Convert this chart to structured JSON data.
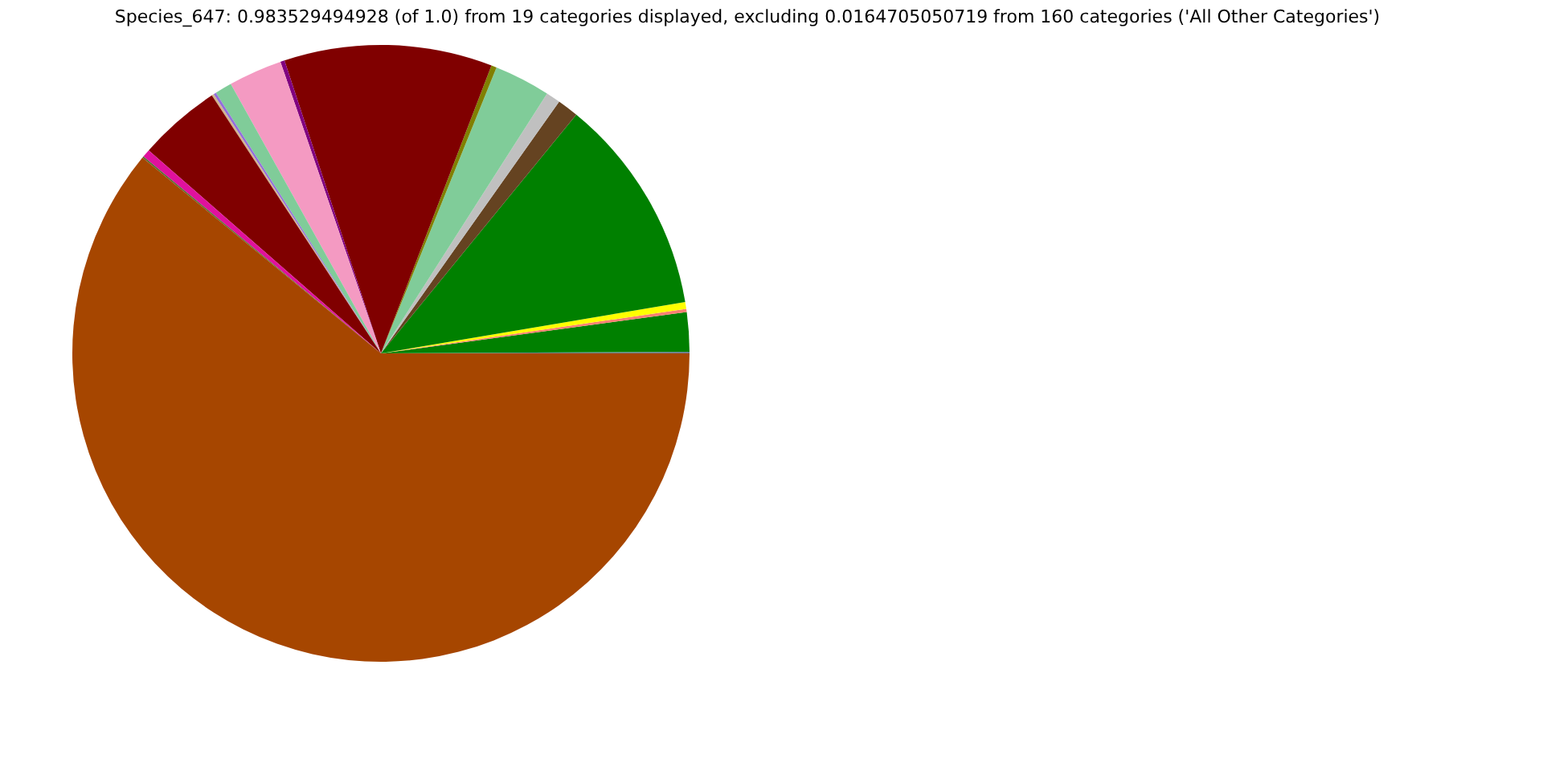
{
  "chart_data": {
    "type": "pie",
    "title": "Species_647: 0.983529494928 (of 1.0) from 19 categories displayed, excluding 0.0164705050719 from 160 categories ('All Other Categories')",
    "categories": [
      null,
      null,
      null,
      null,
      null,
      null,
      null,
      null,
      null,
      null,
      null,
      null,
      null,
      null,
      null,
      null,
      null,
      null,
      null
    ],
    "values": [
      0.08,
      2.06,
      0.17,
      0.36,
      11.42,
      1.11,
      0.75,
      2.94,
      0.28,
      10.89,
      0.22,
      2.81,
      0.89,
      0.14,
      0.11,
      4.33,
      0.42,
      0.08,
      60.94
    ],
    "colors": [
      "#708090",
      "#008000",
      "#fa8072",
      "#ffff00",
      "#008000",
      "#654321",
      "#c0c0c0",
      "#80cc99",
      "#808000",
      "#800000",
      "#800080",
      "#f49ac2",
      "#80cc99",
      "#9370db",
      "#d2b48c",
      "#800000",
      "#e0119d",
      "#556b2f",
      "#a64600"
    ],
    "legend": false
  }
}
